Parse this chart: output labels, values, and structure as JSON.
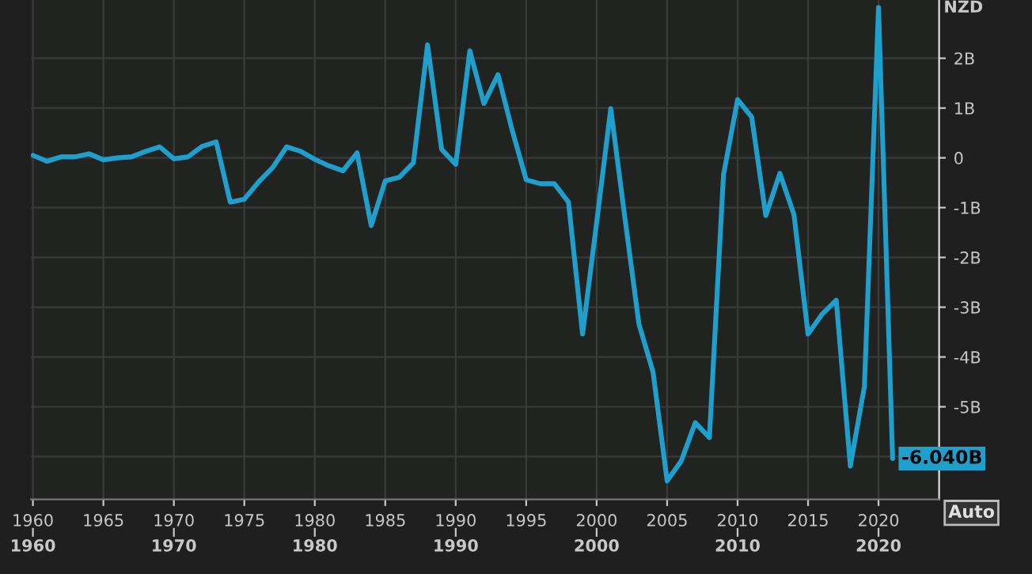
{
  "chart_data": {
    "type": "line",
    "ylabel": "NZD",
    "x": [
      1960,
      1961,
      1962,
      1963,
      1964,
      1965,
      1966,
      1967,
      1968,
      1969,
      1970,
      1971,
      1972,
      1973,
      1974,
      1975,
      1976,
      1977,
      1978,
      1979,
      1980,
      1981,
      1982,
      1983,
      1984,
      1985,
      1986,
      1987,
      1988,
      1989,
      1990,
      1991,
      1992,
      1993,
      1994,
      1995,
      1996,
      1997,
      1998,
      1999,
      2000,
      2001,
      2002,
      2003,
      2004,
      2005,
      2006,
      2007,
      2008,
      2009,
      2010,
      2011,
      2012,
      2013,
      2014,
      2015,
      2016,
      2017,
      2018,
      2019,
      2020,
      2021
    ],
    "series": [
      {
        "color": "#1e9fcc",
        "values": [
          0.05,
          -0.07,
          0.02,
          0.02,
          0.08,
          -0.04,
          0,
          0.02,
          0.13,
          0.22,
          -0.02,
          0.02,
          0.23,
          0.32,
          -0.89,
          -0.83,
          -0.49,
          -0.2,
          0.22,
          0.13,
          -0.03,
          -0.16,
          -0.26,
          0.1,
          -1.36,
          -0.46,
          -0.39,
          -0.1,
          2.27,
          0.17,
          -0.13,
          2.15,
          1.09,
          1.67,
          0.56,
          -0.44,
          -0.52,
          -0.52,
          -0.89,
          -3.54,
          -1.3,
          0.99,
          -1.2,
          -3.34,
          -4.3,
          -6.49,
          -6.09,
          -5.32,
          -5.62,
          -0.34,
          1.17,
          0.82,
          -1.16,
          -0.31,
          -1.14,
          -3.54,
          -3.14,
          -2.86,
          -6.19,
          -4.59,
          3.02,
          -6.04
        ],
        "value_labels": [
          null,
          null,
          null,
          null,
          null,
          null,
          null,
          null,
          null,
          null,
          null,
          null,
          null,
          null,
          null,
          null,
          null,
          null,
          null,
          null,
          null,
          null,
          null,
          null,
          null,
          null,
          null,
          null,
          null,
          null,
          null,
          null,
          null,
          null,
          null,
          null,
          null,
          null,
          null,
          null,
          null,
          null,
          null,
          null,
          null,
          null,
          null,
          null,
          null,
          null,
          null,
          null,
          null,
          null,
          null,
          null,
          null,
          null,
          null,
          null,
          null,
          "-6.040B"
        ]
      }
    ],
    "xlim": [
      1959.86,
      2024.3
    ],
    "ylim": [
      -6.86,
      3.17
    ],
    "xticks": [
      1960,
      1965,
      1970,
      1975,
      1980,
      1985,
      1990,
      1995,
      2000,
      2005,
      2010,
      2015,
      2020
    ],
    "x2lim": [
      1959.86,
      2024.3
    ],
    "x2ticks": [
      1960,
      1970,
      1980,
      1990,
      2000,
      2010,
      2020
    ],
    "yticks": [
      {
        "value": -6,
        "label": null
      },
      {
        "value": -5,
        "label": "-5B"
      },
      {
        "value": -4,
        "label": "-4B"
      },
      {
        "value": -3,
        "label": "-3B"
      },
      {
        "value": -2,
        "label": "-2B"
      },
      {
        "value": -1,
        "label": "-1B"
      },
      0,
      {
        "value": 1,
        "label": "1B"
      },
      {
        "value": 2,
        "label": "2B"
      }
    ],
    "grid": true,
    "legend": false,
    "marker": "none",
    "line_style": "solid",
    "annotations": [
      "Auto"
    ]
  }
}
